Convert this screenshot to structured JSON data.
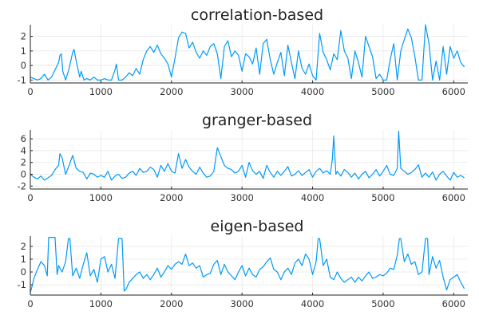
{
  "chart_data": [
    {
      "type": "line",
      "title": "correlation-based",
      "xlim": [
        0,
        6200
      ],
      "ylim": [
        -1.2,
        2.8
      ],
      "xticks": [
        0,
        1000,
        2000,
        3000,
        4000,
        5000,
        6000
      ],
      "yticks": [
        -1,
        0,
        1,
        2
      ],
      "grid": true,
      "legend": "none",
      "color": "#009af9",
      "series": [
        {
          "x": [
            0,
            50,
            100,
            150,
            200,
            250,
            300,
            350,
            400,
            420,
            440,
            460,
            500,
            550,
            600,
            620,
            650,
            700,
            720,
            760,
            800,
            850,
            900,
            950,
            1000,
            1050,
            1100,
            1150,
            1200,
            1220,
            1250,
            1300,
            1350,
            1400,
            1450,
            1500,
            1550,
            1600,
            1650,
            1700,
            1750,
            1800,
            1850,
            1900,
            1950,
            2000,
            2050,
            2100,
            2150,
            2200,
            2250,
            2300,
            2350,
            2400,
            2450,
            2500,
            2550,
            2600,
            2650,
            2700,
            2750,
            2800,
            2850,
            2900,
            2950,
            3000,
            3050,
            3100,
            3150,
            3200,
            3250,
            3300,
            3350,
            3400,
            3450,
            3500,
            3550,
            3600,
            3650,
            3700,
            3750,
            3800,
            3850,
            3900,
            3950,
            4000,
            4050,
            4100,
            4150,
            4200,
            4250,
            4300,
            4350,
            4400,
            4450,
            4500,
            4550,
            4600,
            4650,
            4700,
            4750,
            4800,
            4850,
            4900,
            4950,
            5000,
            5050,
            5100,
            5150,
            5200,
            5250,
            5300,
            5350,
            5400,
            5450,
            5500,
            5550,
            5600,
            5650,
            5700,
            5750,
            5800,
            5850,
            5900,
            5950,
            6000,
            6050,
            6100,
            6150
          ],
          "y": [
            -0.8,
            -0.9,
            -1.0,
            -0.9,
            -0.6,
            -1.0,
            -0.8,
            -0.3,
            0.2,
            0.7,
            0.8,
            -0.4,
            -1.0,
            -0.2,
            0.9,
            1.1,
            0.3,
            -0.8,
            -0.4,
            -1.0,
            -0.9,
            -1.0,
            -0.8,
            -1.0,
            -1.0,
            -0.9,
            -1.0,
            -1.0,
            -0.3,
            0.1,
            -1.0,
            -1.0,
            -0.8,
            -0.5,
            -0.7,
            -0.2,
            -0.6,
            0.4,
            1.0,
            1.3,
            0.9,
            1.4,
            0.8,
            0.5,
            0.1,
            -0.8,
            0.5,
            1.9,
            2.3,
            2.2,
            1.2,
            1.6,
            0.9,
            0.5,
            1.0,
            0.7,
            1.3,
            1.5,
            0.8,
            -0.9,
            1.3,
            1.7,
            0.6,
            1.0,
            0.7,
            -0.4,
            0.8,
            0.6,
            0.1,
            1.2,
            -0.6,
            1.5,
            1.8,
            0.4,
            -0.6,
            0.2,
            0.9,
            -0.7,
            1.4,
            0.2,
            -0.9,
            1.0,
            -0.2,
            -0.6,
            0.1,
            -0.7,
            -1.0,
            2.2,
            0.9,
            0.4,
            -0.3,
            0.8,
            0.4,
            2.4,
            1.0,
            0.5,
            -0.9,
            1.0,
            0.2,
            -0.8,
            2.0,
            1.3,
            0.6,
            -0.9,
            -0.6,
            -1.0,
            -1.0,
            0.4,
            1.5,
            -1.0,
            1.0,
            1.8,
            2.5,
            1.9,
            0.6,
            -1.0,
            -1.0,
            2.8,
            1.5,
            -1.0,
            0.3,
            -1.0,
            1.3,
            -0.6,
            1.3,
            0.5,
            1.0,
            0.2,
            -0.1
          ]
        }
      ]
    },
    {
      "type": "line",
      "title": "granger-based",
      "xlim": [
        0,
        6200
      ],
      "ylim": [
        -2.5,
        7.5
      ],
      "xticks": [
        0,
        1000,
        2000,
        3000,
        4000,
        5000,
        6000
      ],
      "yticks": [
        -2,
        0,
        2,
        4,
        6
      ],
      "grid": true,
      "legend": "none",
      "color": "#009af9",
      "series": [
        {
          "x": [
            0,
            50,
            100,
            150,
            200,
            250,
            300,
            350,
            400,
            420,
            450,
            500,
            550,
            600,
            650,
            700,
            750,
            800,
            850,
            900,
            950,
            1000,
            1050,
            1100,
            1150,
            1200,
            1250,
            1300,
            1350,
            1400,
            1450,
            1500,
            1550,
            1600,
            1650,
            1700,
            1750,
            1800,
            1850,
            1900,
            1950,
            2000,
            2050,
            2100,
            2150,
            2200,
            2250,
            2300,
            2350,
            2400,
            2450,
            2500,
            2550,
            2600,
            2650,
            2700,
            2750,
            2800,
            2850,
            2900,
            2950,
            3000,
            3050,
            3100,
            3150,
            3200,
            3250,
            3300,
            3350,
            3400,
            3450,
            3500,
            3550,
            3600,
            3650,
            3700,
            3750,
            3800,
            3850,
            3900,
            3950,
            4000,
            4050,
            4100,
            4150,
            4200,
            4250,
            4280,
            4300,
            4330,
            4350,
            4400,
            4450,
            4500,
            4550,
            4600,
            4650,
            4700,
            4750,
            4800,
            4850,
            4900,
            4950,
            5000,
            5050,
            5100,
            5150,
            5200,
            5220,
            5250,
            5300,
            5350,
            5400,
            5450,
            5500,
            5550,
            5600,
            5650,
            5700,
            5750,
            5800,
            5850,
            5900,
            5950,
            6000,
            6050,
            6100,
            6150
          ],
          "y": [
            0.0,
            -0.5,
            -0.8,
            -0.3,
            -1.0,
            -0.6,
            -0.2,
            0.8,
            1.5,
            3.5,
            2.8,
            0.0,
            1.5,
            3.2,
            1.0,
            0.5,
            0.3,
            -0.8,
            0.2,
            0.0,
            -0.5,
            -0.2,
            -0.5,
            0.5,
            -1.0,
            -0.3,
            0.0,
            -0.7,
            -0.5,
            0.2,
            0.5,
            -0.2,
            1.0,
            0.3,
            0.5,
            1.2,
            0.8,
            -0.5,
            1.5,
            0.5,
            1.8,
            0.5,
            0.2,
            3.5,
            1.0,
            2.5,
            1.2,
            0.5,
            0.0,
            1.2,
            0.2,
            -0.5,
            -0.3,
            0.5,
            4.5,
            3.0,
            1.5,
            1.0,
            0.8,
            0.2,
            0.5,
            1.5,
            -0.5,
            2.0,
            0.6,
            0.0,
            0.5,
            -0.7,
            1.5,
            0.3,
            -0.5,
            0.5,
            -0.2,
            0.5,
            1.3,
            -0.3,
            0.0,
            0.6,
            -0.2,
            0.3,
            0.8,
            -0.5,
            0.5,
            1.0,
            0.2,
            0.6,
            0.0,
            2.5,
            6.5,
            0.0,
            0.5,
            -0.3,
            0.8,
            0.3,
            -0.5,
            0.2,
            -0.8,
            0.0,
            0.5,
            -0.6,
            0.0,
            0.8,
            -0.3,
            0.5,
            1.5,
            0.0,
            -0.2,
            1.0,
            7.3,
            1.0,
            0.5,
            0.0,
            0.3,
            0.8,
            1.6,
            -0.5,
            0.2,
            -0.5,
            0.4,
            -1.0,
            0.0,
            0.5,
            -0.3,
            -1.0,
            0.3,
            -0.5,
            -0.2,
            -0.6
          ]
        }
      ]
    },
    {
      "type": "line",
      "title": "eigen-based",
      "xlim": [
        0,
        6200
      ],
      "ylim": [
        -1.8,
        2.8
      ],
      "xticks": [
        0,
        1000,
        2000,
        3000,
        4000,
        5000,
        6000
      ],
      "yticks": [
        -1,
        0,
        1,
        2
      ],
      "grid": true,
      "legend": "none",
      "color": "#009af9",
      "series": [
        {
          "x": [
            0,
            20,
            50,
            100,
            150,
            200,
            240,
            260,
            300,
            350,
            380,
            400,
            450,
            500,
            540,
            560,
            600,
            650,
            700,
            750,
            800,
            850,
            900,
            950,
            1000,
            1050,
            1100,
            1150,
            1200,
            1250,
            1300,
            1330,
            1360,
            1400,
            1450,
            1500,
            1550,
            1600,
            1650,
            1700,
            1750,
            1800,
            1850,
            1900,
            1950,
            2000,
            2050,
            2100,
            2150,
            2200,
            2250,
            2300,
            2350,
            2400,
            2450,
            2500,
            2550,
            2600,
            2650,
            2700,
            2750,
            2800,
            2850,
            2900,
            2950,
            3000,
            3050,
            3100,
            3150,
            3200,
            3250,
            3300,
            3350,
            3400,
            3450,
            3500,
            3550,
            3600,
            3650,
            3700,
            3750,
            3800,
            3850,
            3900,
            3950,
            4000,
            4050,
            4080,
            4100,
            4150,
            4200,
            4250,
            4300,
            4350,
            4400,
            4450,
            4500,
            4550,
            4600,
            4650,
            4700,
            4750,
            4800,
            4850,
            4900,
            4950,
            5000,
            5050,
            5100,
            5150,
            5200,
            5230,
            5250,
            5300,
            5350,
            5400,
            5450,
            5500,
            5550,
            5600,
            5630,
            5650,
            5700,
            5750,
            5800,
            5850,
            5900,
            5950,
            6000,
            6050,
            6100,
            6150
          ],
          "y": [
            -1.6,
            -1.2,
            -0.5,
            0.2,
            0.8,
            0.5,
            -0.3,
            2.7,
            2.7,
            2.7,
            -0.2,
            0.5,
            0.0,
            0.8,
            2.6,
            2.6,
            -0.3,
            0.3,
            -0.5,
            0.6,
            1.5,
            -0.3,
            0.2,
            -0.8,
            1.0,
            1.2,
            0.0,
            0.6,
            -0.5,
            2.6,
            2.6,
            -1.5,
            -1.3,
            -0.8,
            -0.5,
            -0.2,
            0.0,
            -0.5,
            -0.2,
            -0.6,
            -0.2,
            0.3,
            -0.4,
            0.0,
            0.5,
            0.2,
            0.6,
            0.8,
            0.6,
            1.4,
            0.5,
            0.7,
            0.3,
            0.5,
            -0.4,
            -0.2,
            -0.1,
            0.6,
            0.9,
            -0.2,
            0.6,
            0.0,
            -0.3,
            -0.6,
            0.0,
            0.5,
            -0.3,
            0.3,
            -0.2,
            -0.4,
            0.2,
            0.4,
            0.8,
            1.1,
            0.2,
            0.0,
            -0.6,
            0.0,
            0.3,
            -0.2,
            0.7,
            1.0,
            0.5,
            1.4,
            1.0,
            -0.2,
            0.8,
            2.6,
            2.6,
            0.5,
            1.0,
            -0.4,
            -0.6,
            0.0,
            -0.5,
            -0.8,
            -0.6,
            -0.4,
            -0.8,
            -0.4,
            -0.7,
            -0.3,
            0.0,
            -0.5,
            -0.4,
            -0.2,
            -0.3,
            -0.1,
            0.3,
            0.2,
            1.3,
            2.6,
            2.6,
            0.8,
            1.4,
            0.6,
            0.8,
            -0.2,
            0.0,
            2.6,
            2.6,
            -0.2,
            1.2,
            0.3,
            0.9,
            -0.4,
            -1.4,
            -0.6,
            -0.4,
            -0.2,
            -0.8,
            -1.3
          ]
        }
      ]
    }
  ]
}
